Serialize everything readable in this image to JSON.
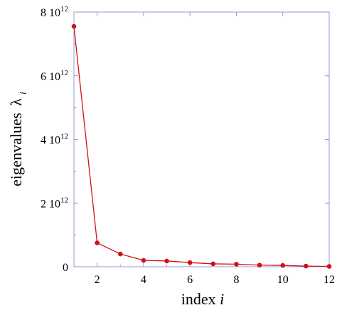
{
  "chart_data": {
    "type": "line",
    "title": "",
    "xlabel": "index",
    "xlabel_var": "i",
    "ylabel": "eigenvalues",
    "ylabel_symbol": "λ",
    "ylabel_sub": "i",
    "xlim": [
      1,
      12
    ],
    "ylim": [
      0,
      8000000000000.0
    ],
    "x_ticks": [
      {
        "value": 2,
        "label": "2"
      },
      {
        "value": 4,
        "label": "4"
      },
      {
        "value": 6,
        "label": "6"
      },
      {
        "value": 8,
        "label": "8"
      },
      {
        "value": 10,
        "label": "10"
      },
      {
        "value": 12,
        "label": "12"
      }
    ],
    "y_ticks": [
      {
        "value": 0,
        "label": "0",
        "exp": ""
      },
      {
        "value": 2000000000000.0,
        "label": "2 10",
        "exp": "12"
      },
      {
        "value": 4000000000000.0,
        "label": "4 10",
        "exp": "12"
      },
      {
        "value": 6000000000000.0,
        "label": "6 10",
        "exp": "12"
      },
      {
        "value": 8000000000000.0,
        "label": "8 10",
        "exp": "12"
      }
    ],
    "grid": false,
    "series": [
      {
        "x": [
          1,
          2,
          3,
          4,
          5,
          6,
          7,
          8,
          9,
          10,
          11,
          12
        ],
        "y": [
          7550000000000.0,
          750000000000.0,
          400000000000.0,
          200000000000.0,
          180000000000.0,
          130000000000.0,
          90000000000.0,
          80000000000.0,
          50000000000.0,
          40000000000.0,
          20000000000.0,
          10000000000.0
        ],
        "color": "#d0101a"
      }
    ],
    "frame_color": "#9999cc"
  }
}
